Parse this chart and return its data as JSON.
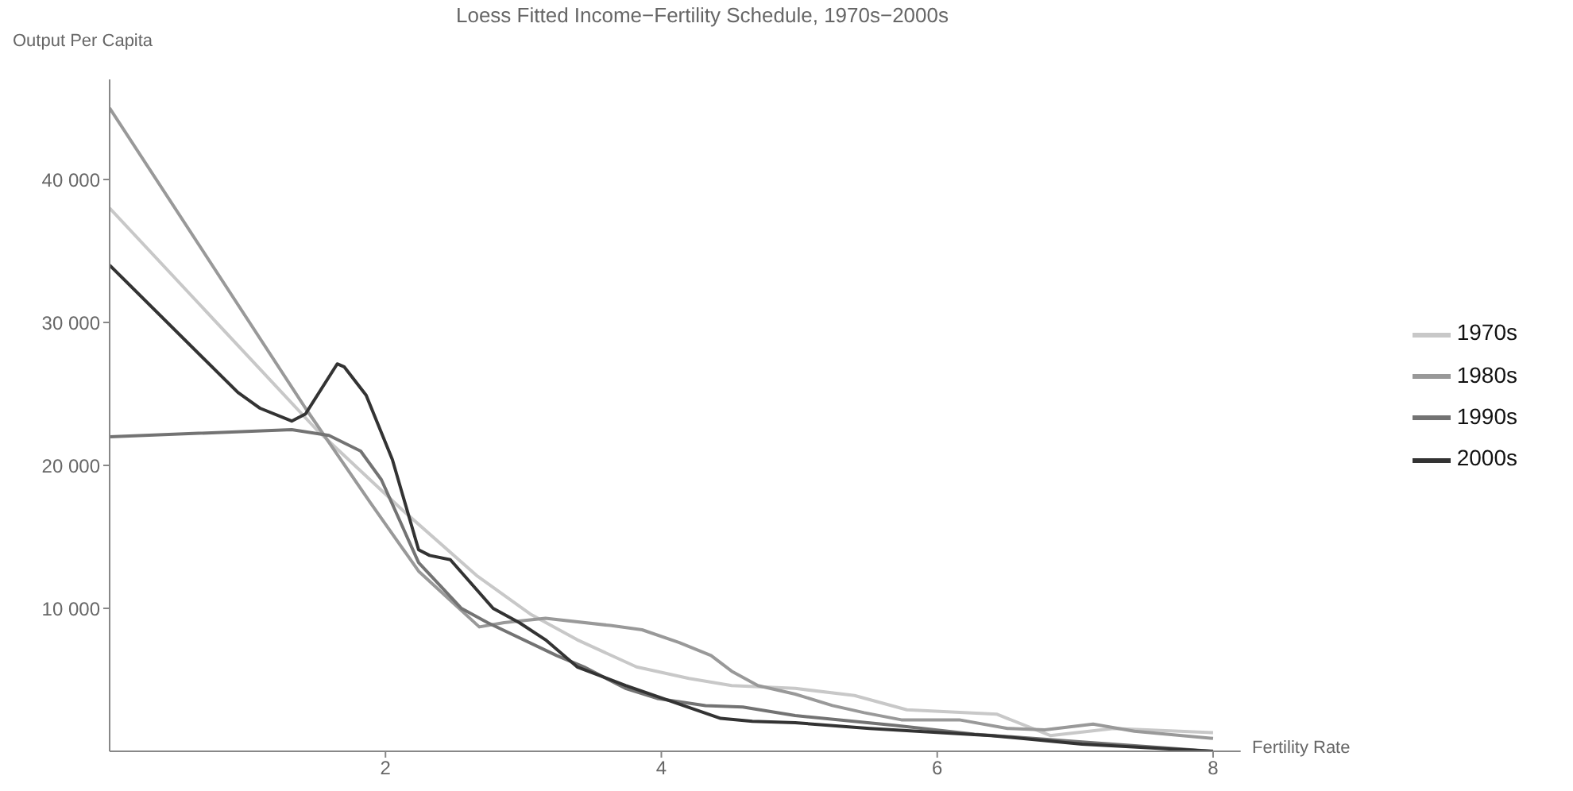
{
  "chart_data": {
    "type": "line",
    "title": "Loess Fitted Income−Fertility Schedule, 1970s−2000s",
    "xlabel": "Fertility Rate",
    "ylabel": "Output Per Capita",
    "xlim": [
      0,
      8.2
    ],
    "ylim": [
      0,
      47000
    ],
    "xticks": [
      2,
      4,
      6,
      8
    ],
    "yticks": [
      {
        "value": 10000,
        "label": "10 000"
      },
      {
        "value": 20000,
        "label": "20 000"
      },
      {
        "value": 30000,
        "label": "30 000"
      },
      {
        "value": 40000,
        "label": "40 000"
      }
    ],
    "grid": false,
    "legend": "right",
    "marker": "none",
    "line_style": "solid",
    "series": [
      {
        "name": "1970s",
        "color": "#c8c8c8",
        "x": [
          0,
          1.5,
          2.12,
          2.66,
          3.05,
          3.39,
          3.82,
          4.2,
          4.51,
          4.97,
          5.4,
          5.78,
          6.43,
          6.82,
          7.28,
          8
        ],
        "values": [
          38000,
          22500,
          16900,
          12300,
          9600,
          7800,
          5900,
          5100,
          4600,
          4400,
          3900,
          2900,
          2600,
          1100,
          1600,
          1300
        ]
      },
      {
        "name": "1980s",
        "color": "#999999",
        "x": [
          0,
          1.42,
          1.89,
          2.24,
          2.68,
          2.86,
          3.16,
          3.63,
          3.86,
          4.13,
          4.36,
          4.51,
          4.7,
          4.97,
          5.24,
          5.47,
          5.74,
          6.16,
          6.51,
          6.78,
          7.13,
          7.43,
          8
        ],
        "values": [
          45000,
          24000,
          17400,
          12600,
          8700,
          9000,
          9300,
          8800,
          8500,
          7600,
          6700,
          5600,
          4600,
          4000,
          3200,
          2700,
          2200,
          2200,
          1600,
          1500,
          1900,
          1400,
          900
        ]
      },
      {
        "name": "1990s",
        "color": "#737373",
        "x": [
          0,
          1.32,
          1.59,
          1.82,
          1.97,
          2.24,
          2.55,
          2.74,
          3.24,
          3.44,
          3.74,
          3.97,
          4.32,
          4.59,
          4.97,
          5.7,
          6.27,
          7.05,
          8
        ],
        "values": [
          22000,
          22500,
          22100,
          21000,
          19000,
          13200,
          10000,
          9000,
          6700,
          5900,
          4400,
          3700,
          3200,
          3100,
          2500,
          1800,
          1200,
          650,
          0
        ]
      },
      {
        "name": "2000s",
        "color": "#333333",
        "x": [
          0,
          0.93,
          1.09,
          1.32,
          1.42,
          1.65,
          1.7,
          1.86,
          2.05,
          2.24,
          2.32,
          2.47,
          2.78,
          2.97,
          3.16,
          3.39,
          3.74,
          4.01,
          4.43,
          4.66,
          4.97,
          5.51,
          6.39,
          7.05,
          8
        ],
        "values": [
          34000,
          25100,
          24000,
          23100,
          23600,
          27100,
          26900,
          24900,
          20400,
          14100,
          13700,
          13400,
          10000,
          9000,
          7800,
          5900,
          4600,
          3700,
          2300,
          2100,
          2000,
          1600,
          1100,
          500,
          0
        ]
      }
    ]
  }
}
